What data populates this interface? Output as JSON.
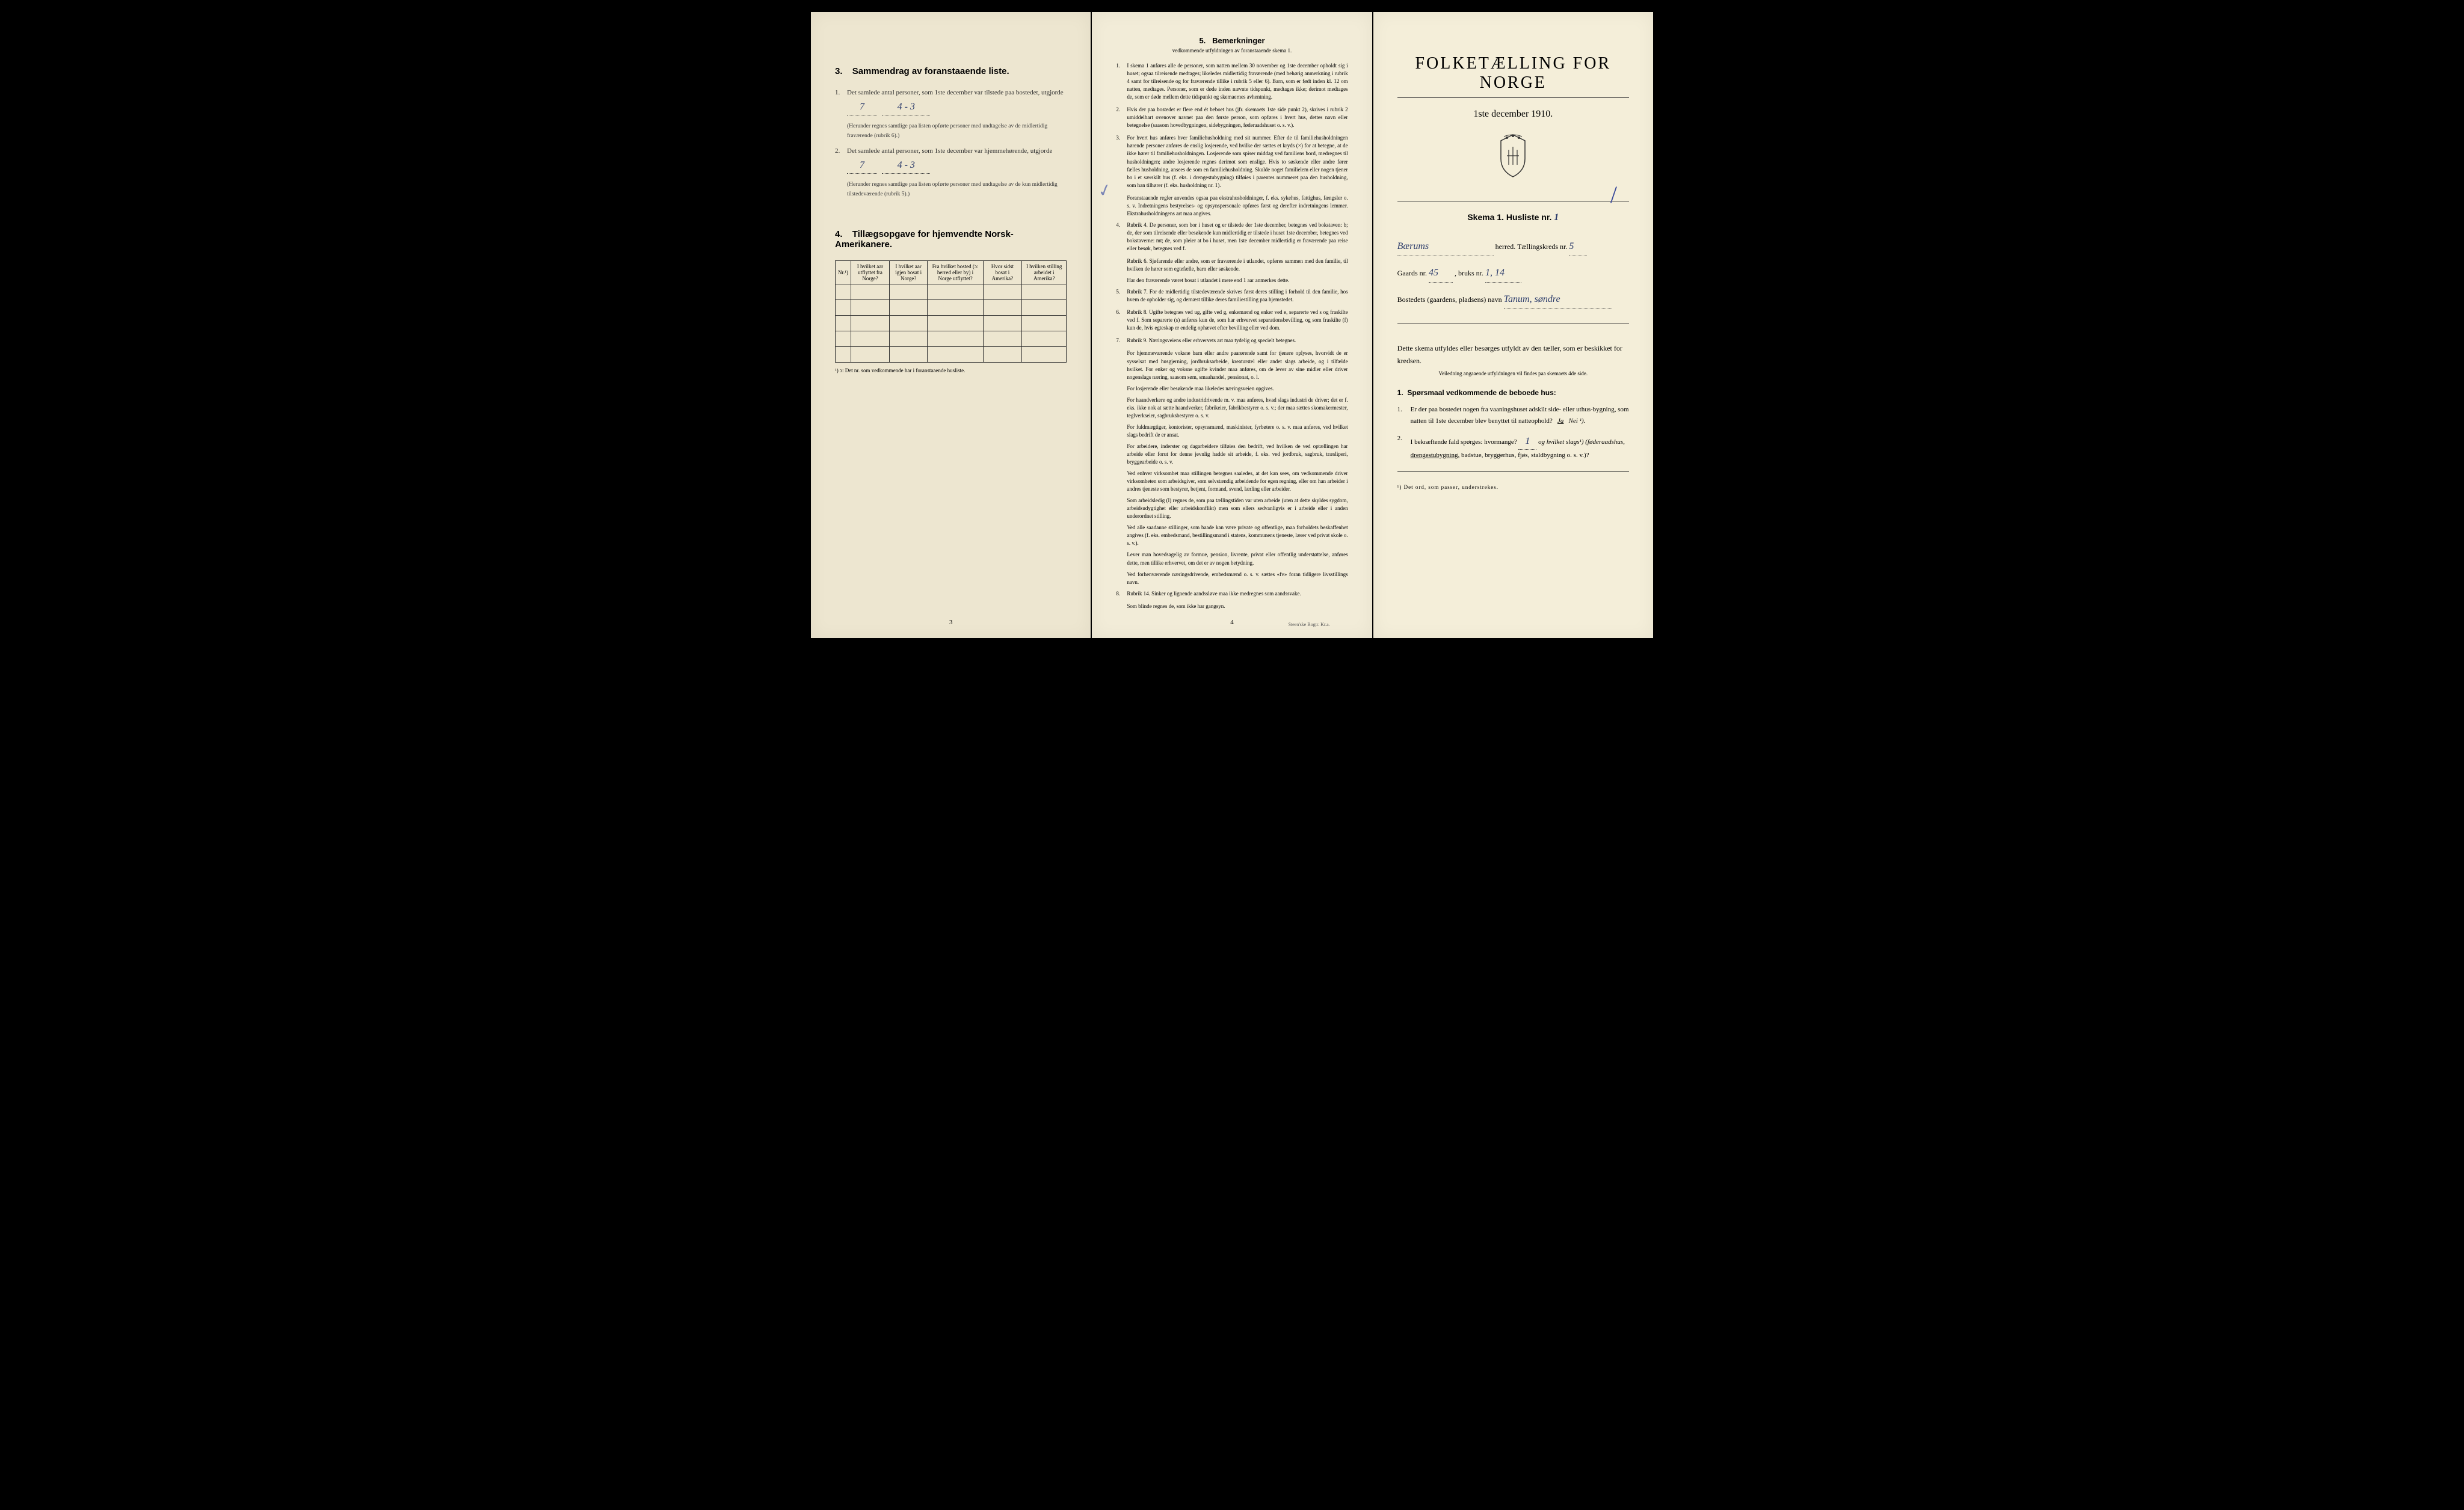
{
  "page1": {
    "section3": {
      "number": "3.",
      "title": "Sammendrag av foranstaaende liste.",
      "item1_num": "1.",
      "item1_text": "Det samlede antal personer, som 1ste december var tilstede paa bostedet, utgjorde",
      "item1_val1": "7",
      "item1_val2": "4 - 3",
      "item1_note": "(Herunder regnes samtlige paa listen opførte personer med undtagelse av de midlertidig fraværende (rubrik 6).)",
      "item2_num": "2.",
      "item2_text": "Det samlede antal personer, som 1ste december var hjemmehørende, utgjorde",
      "item2_val1": "7",
      "item2_val2": "4 - 3",
      "item2_note": "(Herunder regnes samtlige paa listen opførte personer med undtagelse av de kun midlertidig tilstedeværende (rubrik 5).)"
    },
    "section4": {
      "number": "4.",
      "title": "Tillægsopgave for hjemvendte Norsk-Amerikanere.",
      "columns": [
        "Nr.¹)",
        "I hvilket aar utflyttet fra Norge?",
        "I hvilket aar igjen bosat i Norge?",
        "Fra hvilket bosted (ɔ: herred eller by) i Norge utflyttet?",
        "Hvor sidst bosat i Amerika?",
        "I hvilken stilling arbeidet i Amerika?"
      ],
      "footnote": "¹) ɔ: Det nr. som vedkommende har i foranstaaende husliste."
    },
    "page_num": "3"
  },
  "page2": {
    "title_num": "5.",
    "title": "Bemerkninger",
    "subtitle": "vedkommende utfyldningen av foranstaaende skema 1.",
    "items": [
      {
        "n": "1.",
        "t": "I skema 1 anføres alle de personer, som natten mellem 30 november og 1ste december opholdt sig i huset; ogsaa tilreisende medtages; likeledes midlertidig fraværende (med behørig anmerkning i rubrik 4 samt for tilreisende og for fraværende tillike i rubrik 5 eller 6). Barn, som er født inden kl. 12 om natten, medtages. Personer, som er døde inden nævnte tidspunkt, medtages ikke; derimot medtages de, som er døde mellem dette tidspunkt og skemaernes avhentning."
      },
      {
        "n": "2.",
        "t": "Hvis der paa bostedet er flere end ét beboet hus (jfr. skemaets 1ste side punkt 2), skrives i rubrik 2 umiddelbart ovenover navnet paa den første person, som opføres i hvert hus, dettes navn eller betegnelse (saasom hovedbygningen, sidebygningen, føderaadshuset o. s. v.)."
      },
      {
        "n": "3.",
        "t": "For hvert hus anføres hver familiehusholdning med sit nummer. Efter de til familiehusholdningen hørende personer anføres de enslig losjerende, ved hvilke der sættes et kryds (×) for at betegne, at de ikke hører til familiehusholdningen. Losjerende som spiser middag ved familiens bord, medregnes til husholdningen; andre losjerende regnes derimot som enslige. Hvis to søskende eller andre fører fælles husholdning, ansees de som en familiehusholdning. Skulde noget familielem eller nogen tjener bo i et særskilt hus (f. eks. i drengestubygning) tilføies i parentes nummeret paa den husholdning, som han tilhører (f. eks. husholdning nr. 1)."
      },
      {
        "n": "",
        "t": "Foranstaaende regler anvendes ogsaa paa ekstrahusholdninger, f. eks. sykehus, fattighus, fængsler o. s. v. Indretningens bestyrelses- og opsynspersonale opføres først og derefter indretningens lemmer. Ekstrahusholdningens art maa angives."
      },
      {
        "n": "4.",
        "t": "Rubrik 4. De personer, som bor i huset og er tilstede der 1ste december, betegnes ved bokstaven: b; de, der som tilreisende eller besøkende kun midlertidig er tilstede i huset 1ste december, betegnes ved bokstaverne: mt; de, som pleier at bo i huset, men 1ste december midlertidig er fraværende paa reise eller besøk, betegnes ved f."
      },
      {
        "n": "",
        "t": "Rubrik 6. Sjøfarende eller andre, som er fraværende i utlandet, opføres sammen med den familie, til hvilken de hører som egtefælle, barn eller søskende."
      },
      {
        "n": "",
        "t": "Har den fraværende været bosat i utlandet i mere end 1 aar anmerkes dette."
      },
      {
        "n": "5.",
        "t": "Rubrik 7. For de midlertidig tilstedeværende skrives først deres stilling i forhold til den familie, hos hvem de opholder sig, og dernæst tillike deres familiestilling paa hjemstedet."
      },
      {
        "n": "6.",
        "t": "Rubrik 8. Ugifte betegnes ved ug, gifte ved g, enkemænd og enker ved e, separerte ved s og fraskilte ved f. Som separerte (s) anføres kun de, som har erhvervet separationsbevilling, og som fraskilte (f) kun de, hvis egteskap er endelig ophævet efter bevilling eller ved dom."
      },
      {
        "n": "7.",
        "t": "Rubrik 9. Næringsveiens eller erhvervets art maa tydelig og specielt betegnes."
      },
      {
        "n": "",
        "t": "For hjemmeværende voksne barn eller andre paarørende samt for tjenere oplyses, hvorvidt de er sysselsat med husgjerning, jordbruksarbeide, kreaturstel eller andet slags arbeide, og i tilfælde hvilket. For enker og voksne ugifte kvinder maa anføres, om de lever av sine midler eller driver nogenslags næring, saasom søm, smaahandel, pensionat, o. l."
      },
      {
        "n": "",
        "t": "For losjerende eller besøkende maa likeledes næringsveien opgives."
      },
      {
        "n": "",
        "t": "For haandverkere og andre industridrivende m. v. maa anføres, hvad slags industri de driver; det er f. eks. ikke nok at sætte haandverker, fabrikeier, fabrikbestyrer o. s. v.; der maa sættes skomakermester, teglverkseier, sagbruksbestyrer o. s. v."
      },
      {
        "n": "",
        "t": "For fuldmægtiger, kontorister, opsynsmænd, maskinister, fyrbøtere o. s. v. maa anføres, ved hvilket slags bedrift de er ansat."
      },
      {
        "n": "",
        "t": "For arbeidere, inderster og dagarbeidere tilføies den bedrift, ved hvilken de ved optællingen har arbeide eller forut for denne jevnlig hadde sit arbeide, f. eks. ved jordbruk, sagbruk, træsliperi, bryggearbeide o. s. v."
      },
      {
        "n": "",
        "t": "Ved enhver virksomhet maa stillingen betegnes saaledes, at det kan sees, om vedkommende driver virksomheten som arbeidsgiver, som selvstændig arbeidende for egen regning, eller om han arbeider i andres tjeneste som bestyrer, betjent, formand, svend, lærling eller arbeider."
      },
      {
        "n": "",
        "t": "Som arbeidsledig (l) regnes de, som paa tællingstiden var uten arbeide (uten at dette skyldes sygdom, arbeidsudygtighet eller arbeidskonflikt) men som ellers sedvanligvis er i arbeide eller i anden underordnet stilling."
      },
      {
        "n": "",
        "t": "Ved alle saadanne stillinger, som baade kan være private og offentlige, maa forholdets beskaffenhet angives (f. eks. embedsmand, bestillingsmand i statens, kommunens tjeneste, lærer ved privat skole o. s. v.)."
      },
      {
        "n": "",
        "t": "Lever man hovedsagelig av formue, pension, livrente, privat eller offentlig understøttelse, anføres dette, men tillike erhvervet, om det er av nogen betydning."
      },
      {
        "n": "",
        "t": "Ved forhenværende næringsdrivende, embedsmænd o. s. v. sættes «fv» foran tidligere livsstillings navn."
      },
      {
        "n": "8.",
        "t": "Rubrik 14. Sinker og lignende aandssløve maa ikke medregnes som aandssvake."
      },
      {
        "n": "",
        "t": "Som blinde regnes de, som ikke har gangsyn."
      }
    ],
    "page_num": "4",
    "printer": "Steen'ske Bogtr. Kr.a."
  },
  "page3": {
    "main_title": "FOLKETÆLLING FOR NORGE",
    "date": "1ste december 1910.",
    "skema_label": "Skema 1.  Husliste nr.",
    "skema_val": "1",
    "herred_val": "Bærums",
    "herred_label": "herred.  Tællingskreds nr.",
    "kreds_val": "5",
    "gaard_label": "Gaards nr.",
    "gaard_val": "45",
    "bruk_label": ", bruks nr.",
    "bruk_val": "1, 14",
    "bosted_label": "Bostedets (gaardens, pladsens) navn",
    "bosted_val": "Tanum, søndre",
    "intro": "Dette skema utfyldes eller besørges utfyldt av den tæller, som er beskikket for kredsen.",
    "small_note": "Veiledning angaaende utfyldningen vil findes paa skemaets 4de side.",
    "q_head_num": "1.",
    "q_head": "Spørsmaal vedkommende de beboede hus:",
    "q1_num": "1.",
    "q1_text": "Er der paa bostedet nogen fra vaaningshuset adskilt side- eller uthus-bygning, som natten til 1ste december blev benyttet til natteophold?",
    "q1_ja": "Ja",
    "q1_nei": "Nei ¹).",
    "q2_num": "2.",
    "q2_text_a": "I bekræftende fald spørges: hvormange?",
    "q2_val": "1",
    "q2_text_b": "og hvilket slags¹) (føderaadshus,",
    "q2_text_c": "drengestubygning,",
    "q2_text_d": "badstue, bryggerhus, fjøs, staldbygning o. s. v.)?",
    "footnote": "¹) Det ord, som passer, understrekes."
  }
}
